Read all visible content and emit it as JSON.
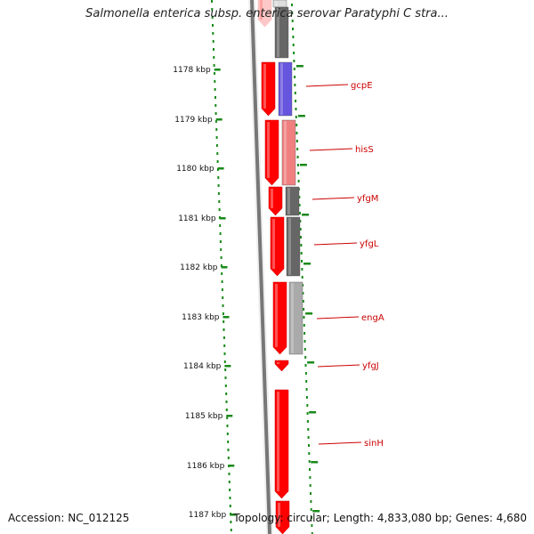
{
  "title": "Salmonella enterica subsp. enterica serovar Paratyphi C stra...",
  "footer": {
    "accession": "Accession: NC_012125",
    "stats": "Topology: circular; Length: 4,833,080 bp; Genes: 4,680"
  },
  "colors": {
    "forward_gene": "#ff0000",
    "ruler_ticks": "#1a8a1a",
    "backbone": "#777777",
    "label_text": "#cc0000",
    "cog_purple": "#6655dd",
    "cog_pink": "#f08080",
    "cog_dark_gray": "#666666",
    "cog_light_gray": "#aaaaaa"
  },
  "ruler": {
    "unit": "kbp",
    "ticks": [
      "1178 kbp",
      "1179 kbp",
      "1180 kbp",
      "1181 kbp",
      "1182 kbp",
      "1183 kbp",
      "1184 kbp",
      "1185 kbp",
      "1186 kbp",
      "1187 kbp"
    ]
  },
  "genes": [
    {
      "label": "gcpE",
      "cog_color": "#6655dd"
    },
    {
      "label": "hisS",
      "cog_color": "#f08080"
    },
    {
      "label": "yfgM",
      "cog_color": "#666666"
    },
    {
      "label": "yfgL",
      "cog_color": "#666666"
    },
    {
      "label": "engA",
      "cog_color": "#aaaaaa"
    },
    {
      "label": "yfgJ",
      "cog_color": ""
    },
    {
      "label": "sinH",
      "cog_color": ""
    }
  ]
}
